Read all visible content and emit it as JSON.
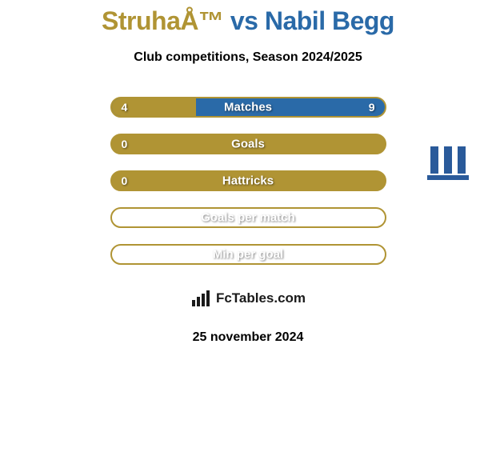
{
  "title": {
    "text": "StruhaÅ™ vs Nabil Begg",
    "color_left": "#b09434",
    "color_right": "#2a6aa8"
  },
  "subtitle": "Club competitions, Season 2024/2025",
  "bars": [
    {
      "label": "Matches",
      "left": "4",
      "right": "9",
      "fill_pct": 31,
      "fill_color": "#b09434",
      "rest_color": "#2a6aa8",
      "border_color": "#b09434"
    },
    {
      "label": "Goals",
      "left": "0",
      "right": "",
      "fill_pct": 0,
      "fill_color": "#b09434",
      "rest_color": "#b09434",
      "border_color": "#b09434"
    },
    {
      "label": "Hattricks",
      "left": "0",
      "right": "",
      "fill_pct": 0,
      "fill_color": "#b09434",
      "rest_color": "#b09434",
      "border_color": "#b09434"
    },
    {
      "label": "Goals per match",
      "left": "",
      "right": "",
      "fill_pct": 0,
      "fill_color": "#b09434",
      "rest_color": "none",
      "border_color": "#b09434"
    },
    {
      "label": "Min per goal",
      "left": "",
      "right": "",
      "fill_pct": 0,
      "fill_color": "#b09434",
      "rest_color": "none",
      "border_color": "#b09434"
    }
  ],
  "logo_text": "FcTables.com",
  "date": "25 november 2024",
  "colors": {
    "title_left": "#b09434",
    "title_right": "#2a6aa8",
    "badge_blue": "#2a5a9a"
  }
}
